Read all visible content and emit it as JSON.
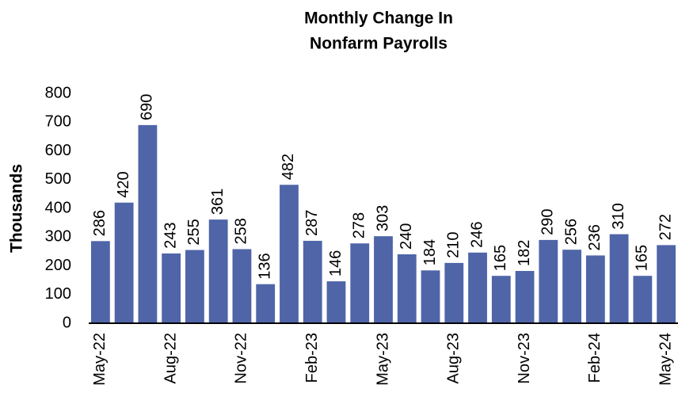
{
  "chart_data": {
    "type": "bar",
    "title": [
      "Monthly Change In",
      "Nonfarm Payrolls"
    ],
    "y_label": "Thousands",
    "categories": [
      "May-22",
      null,
      null,
      "Aug-22",
      null,
      null,
      "Nov-22",
      null,
      null,
      "Feb-23",
      null,
      null,
      "May-23",
      null,
      null,
      "Aug-23",
      null,
      null,
      "Nov-23",
      null,
      null,
      "Feb-24",
      null,
      null,
      "May-24"
    ],
    "values": [
      286,
      420,
      690,
      243,
      255,
      361,
      258,
      136,
      482,
      287,
      146,
      278,
      303,
      240,
      184,
      210,
      246,
      165,
      182,
      290,
      256,
      236,
      310,
      165,
      272
    ],
    "color": "#4f65a8",
    "ylim": [
      0,
      800
    ],
    "yticks": [
      0,
      100,
      200,
      300,
      400,
      500,
      600,
      700,
      800
    ],
    "grid": false
  }
}
